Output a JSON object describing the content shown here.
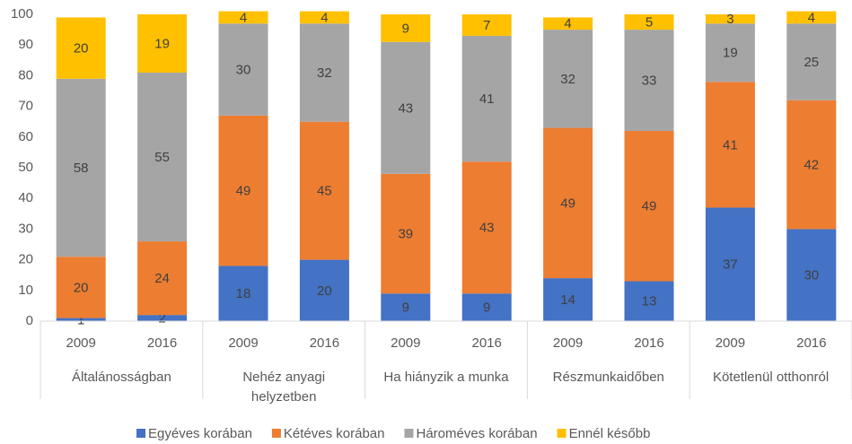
{
  "chart_data": {
    "type": "stacked_bar",
    "categories": [
      "2009",
      "2016",
      "2009",
      "2016",
      "2009",
      "2016",
      "2009",
      "2016",
      "2009",
      "2016"
    ],
    "groups": [
      "Általánosságban",
      "Nehéz anyagi helyzetben",
      "Ha hiányzik a munka",
      "Részmunkaidőben",
      "Kötetlenül otthonról"
    ],
    "series": [
      {
        "name": "Egyéves korában",
        "color": "#4472c4",
        "values": [
          1,
          2,
          18,
          20,
          9,
          9,
          14,
          13,
          37,
          30
        ]
      },
      {
        "name": "Kétéves korában",
        "color": "#ed7d31",
        "values": [
          20,
          24,
          49,
          45,
          39,
          43,
          49,
          49,
          41,
          42
        ]
      },
      {
        "name": "Hároméves korában",
        "color": "#a5a5a5",
        "values": [
          58,
          55,
          30,
          32,
          43,
          41,
          32,
          33,
          19,
          25
        ]
      },
      {
        "name": "Ennél később",
        "color": "#ffc000",
        "values": [
          20,
          19,
          4,
          4,
          9,
          7,
          4,
          5,
          3,
          4
        ]
      }
    ],
    "ylim": [
      0,
      100
    ],
    "yticks": [
      0,
      10,
      20,
      30,
      40,
      50,
      60,
      70,
      80,
      90,
      100
    ],
    "grid": false,
    "legend": "bottom"
  }
}
